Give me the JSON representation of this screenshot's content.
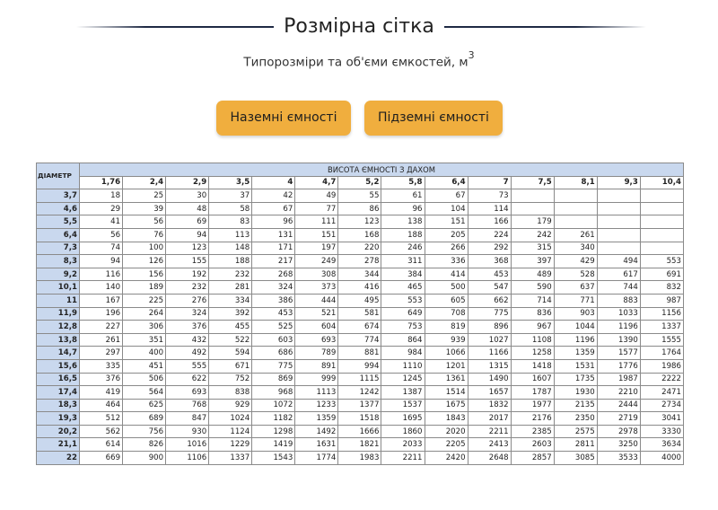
{
  "header": {
    "title": "Розмірна сітка",
    "subtitle": "Типорозміри та об'єми ємкостей, м",
    "subtitle_sup": "3"
  },
  "buttons": {
    "ground": "Наземні ємності",
    "underground": "Підземні ємності"
  },
  "colors": {
    "accent": "#f0ae3e",
    "header_fill": "#c9d8ee",
    "title_line": "#1f2a44"
  },
  "table": {
    "row_header": "ДІАМЕТР",
    "group_header": "ВИСОТА ЄМНОСТІ З ДАХОМ",
    "heights": [
      "1,76",
      "2,4",
      "2,9",
      "3,5",
      "4",
      "4,7",
      "5,2",
      "5,8",
      "6,4",
      "7",
      "7,5",
      "8,1",
      "9,3",
      "10,4"
    ],
    "rows": [
      {
        "d": "3,7",
        "v": [
          "18",
          "25",
          "30",
          "37",
          "42",
          "49",
          "55",
          "61",
          "67",
          "73",
          "",
          "",
          "",
          ""
        ]
      },
      {
        "d": "4,6",
        "v": [
          "29",
          "39",
          "48",
          "58",
          "67",
          "77",
          "86",
          "96",
          "104",
          "114",
          "",
          "",
          "",
          ""
        ]
      },
      {
        "d": "5,5",
        "v": [
          "41",
          "56",
          "69",
          "83",
          "96",
          "111",
          "123",
          "138",
          "151",
          "166",
          "179",
          "",
          "",
          ""
        ]
      },
      {
        "d": "6,4",
        "v": [
          "56",
          "76",
          "94",
          "113",
          "131",
          "151",
          "168",
          "188",
          "205",
          "224",
          "242",
          "261",
          "",
          ""
        ]
      },
      {
        "d": "7,3",
        "v": [
          "74",
          "100",
          "123",
          "148",
          "171",
          "197",
          "220",
          "246",
          "266",
          "292",
          "315",
          "340",
          "",
          ""
        ]
      },
      {
        "d": "8,3",
        "v": [
          "94",
          "126",
          "155",
          "188",
          "217",
          "249",
          "278",
          "311",
          "336",
          "368",
          "397",
          "429",
          "494",
          "553"
        ]
      },
      {
        "d": "9,2",
        "v": [
          "116",
          "156",
          "192",
          "232",
          "268",
          "308",
          "344",
          "384",
          "414",
          "453",
          "489",
          "528",
          "617",
          "691"
        ]
      },
      {
        "d": "10,1",
        "v": [
          "140",
          "189",
          "232",
          "281",
          "324",
          "373",
          "416",
          "465",
          "500",
          "547",
          "590",
          "637",
          "744",
          "832"
        ]
      },
      {
        "d": "11",
        "v": [
          "167",
          "225",
          "276",
          "334",
          "386",
          "444",
          "495",
          "553",
          "605",
          "662",
          "714",
          "771",
          "883",
          "987"
        ]
      },
      {
        "d": "11,9",
        "v": [
          "196",
          "264",
          "324",
          "392",
          "453",
          "521",
          "581",
          "649",
          "708",
          "775",
          "836",
          "903",
          "1033",
          "1156"
        ]
      },
      {
        "d": "12,8",
        "v": [
          "227",
          "306",
          "376",
          "455",
          "525",
          "604",
          "674",
          "753",
          "819",
          "896",
          "967",
          "1044",
          "1196",
          "1337"
        ]
      },
      {
        "d": "13,8",
        "v": [
          "261",
          "351",
          "432",
          "522",
          "603",
          "693",
          "774",
          "864",
          "939",
          "1027",
          "1108",
          "1196",
          "1390",
          "1555"
        ]
      },
      {
        "d": "14,7",
        "v": [
          "297",
          "400",
          "492",
          "594",
          "686",
          "789",
          "881",
          "984",
          "1066",
          "1166",
          "1258",
          "1359",
          "1577",
          "1764"
        ]
      },
      {
        "d": "15,6",
        "v": [
          "335",
          "451",
          "555",
          "671",
          "775",
          "891",
          "994",
          "1110",
          "1201",
          "1315",
          "1418",
          "1531",
          "1776",
          "1986"
        ]
      },
      {
        "d": "16,5",
        "v": [
          "376",
          "506",
          "622",
          "752",
          "869",
          "999",
          "1115",
          "1245",
          "1361",
          "1490",
          "1607",
          "1735",
          "1987",
          "2222"
        ]
      },
      {
        "d": "17,4",
        "v": [
          "419",
          "564",
          "693",
          "838",
          "968",
          "1113",
          "1242",
          "1387",
          "1514",
          "1657",
          "1787",
          "1930",
          "2210",
          "2471"
        ]
      },
      {
        "d": "18,3",
        "v": [
          "464",
          "625",
          "768",
          "929",
          "1072",
          "1233",
          "1377",
          "1537",
          "1675",
          "1832",
          "1977",
          "2135",
          "2444",
          "2734"
        ]
      },
      {
        "d": "19,3",
        "v": [
          "512",
          "689",
          "847",
          "1024",
          "1182",
          "1359",
          "1518",
          "1695",
          "1843",
          "2017",
          "2176",
          "2350",
          "2719",
          "3041"
        ]
      },
      {
        "d": "20,2",
        "v": [
          "562",
          "756",
          "930",
          "1124",
          "1298",
          "1492",
          "1666",
          "1860",
          "2020",
          "2211",
          "2385",
          "2575",
          "2978",
          "3330"
        ]
      },
      {
        "d": "21,1",
        "v": [
          "614",
          "826",
          "1016",
          "1229",
          "1419",
          "1631",
          "1821",
          "2033",
          "2205",
          "2413",
          "2603",
          "2811",
          "3250",
          "3634"
        ]
      },
      {
        "d": "22",
        "v": [
          "669",
          "900",
          "1106",
          "1337",
          "1543",
          "1774",
          "1983",
          "2211",
          "2420",
          "2648",
          "2857",
          "3085",
          "3533",
          "4000"
        ]
      }
    ]
  }
}
